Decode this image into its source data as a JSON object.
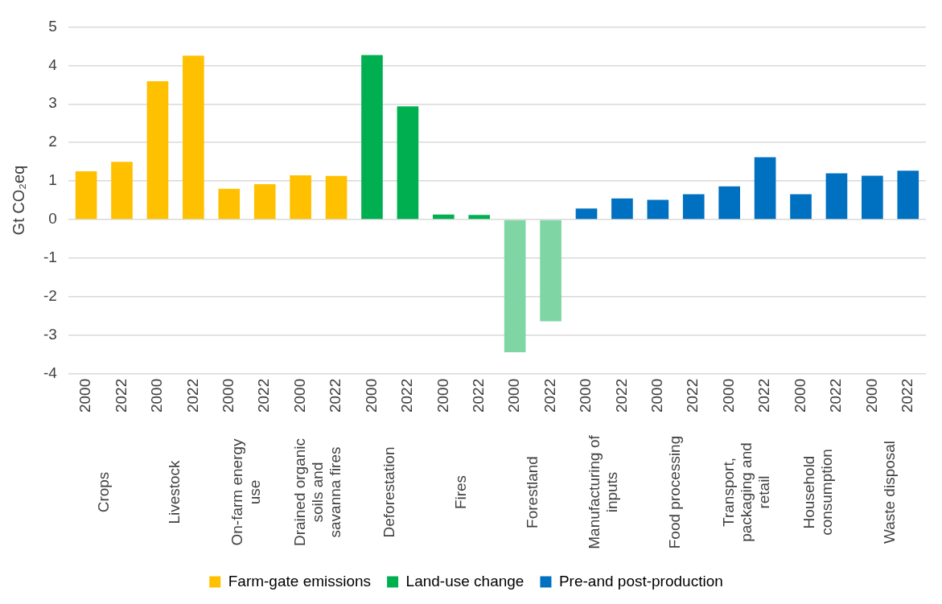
{
  "chart_data": {
    "type": "bar",
    "ylabel": "Gt CO₂eq",
    "categories": [
      "2000",
      "2022",
      "2000",
      "2022",
      "2000",
      "2022",
      "2000",
      "2022",
      "2000",
      "2022",
      "2000",
      "2022",
      "2000",
      "2022",
      "2000",
      "2022",
      "2000",
      "2022",
      "2000",
      "2022",
      "2000",
      "2022",
      "2000",
      "2022"
    ],
    "annotations": [
      "Crops",
      "Livestock",
      "On-farm energy use",
      "Drained organic soils and savanna fires",
      "Deforestation",
      "Fires",
      "Forestland",
      "Manufacturing of inputs",
      "Food processing",
      "Transport, packaging and retail",
      "Household consumption",
      "Waste disposal"
    ],
    "series": [
      {
        "name": "Farm-gate emissions",
        "color": "#ffc000",
        "values": [
          1.25,
          1.5,
          3.59,
          4.25,
          0.8,
          0.92,
          1.15,
          1.13,
          null,
          null,
          null,
          null,
          null,
          null,
          null,
          null,
          null,
          null,
          null,
          null,
          null,
          null,
          null,
          null
        ]
      },
      {
        "name": "Land-use change",
        "color": "#00b050",
        "colors": [
          null,
          null,
          null,
          null,
          null,
          null,
          null,
          null,
          "#00b050",
          "#00b050",
          "#00b050",
          "#00b050",
          "#7fd6a4",
          "#7fd6a4",
          null,
          null,
          null,
          null,
          null,
          null,
          null,
          null,
          null,
          null
        ],
        "values": [
          null,
          null,
          null,
          null,
          null,
          null,
          null,
          null,
          4.27,
          2.94,
          0.13,
          0.12,
          -3.44,
          -2.64,
          null,
          null,
          null,
          null,
          null,
          null,
          null,
          null,
          null,
          null
        ]
      },
      {
        "name": "Pre-and post-production",
        "color": "#0070c0",
        "values": [
          null,
          null,
          null,
          null,
          null,
          null,
          null,
          null,
          null,
          null,
          null,
          null,
          null,
          null,
          0.29,
          0.55,
          0.51,
          0.66,
          0.86,
          1.62,
          0.66,
          1.2,
          1.14,
          1.27
        ]
      }
    ],
    "ylim": [
      -4,
      5
    ],
    "yticks": [
      -4,
      -3,
      -2,
      -1,
      0,
      1,
      2,
      3,
      4,
      5
    ],
    "grid": "y",
    "legend": "bottom"
  }
}
